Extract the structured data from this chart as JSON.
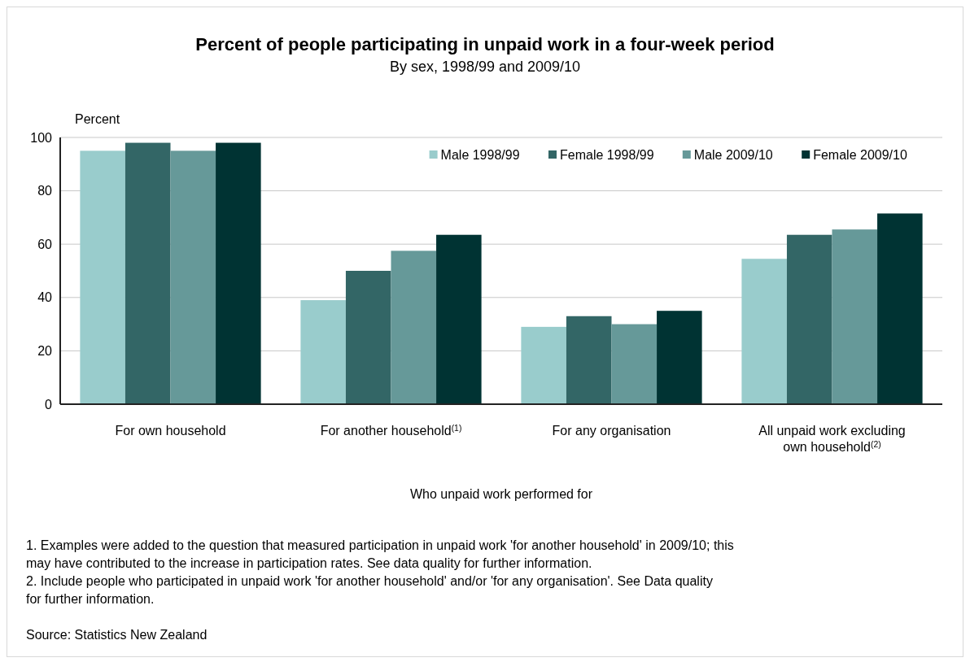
{
  "chart_data": {
    "type": "bar",
    "title": "Percent of people participating in unpaid work in a four-week period",
    "subtitle": "By sex, 1998/99 and 2009/10",
    "ylabel": "Percent",
    "xlabel": "Who unpaid work performed for",
    "categories": [
      "For own household",
      "For another household$^{(1)}$",
      "For any organisation",
      "All unpaid work excluding own household$^{(2)}$"
    ],
    "series": [
      {
        "name": "Male 1998/99",
        "color": "#99cccc",
        "values": [
          95,
          39,
          29,
          54.5
        ]
      },
      {
        "name": "Female 1998/99",
        "color": "#336666",
        "values": [
          98,
          50,
          33,
          63.5
        ]
      },
      {
        "name": "Male 2009/10",
        "color": "#669999",
        "values": [
          95,
          57.5,
          30,
          65.5
        ]
      },
      {
        "name": "Female 2009/10",
        "color": "#003333",
        "values": [
          98,
          63.5,
          35,
          71.5
        ]
      }
    ],
    "ylim": [
      0,
      100
    ],
    "yticks": [
      0,
      20,
      40,
      60,
      80,
      100
    ],
    "grid": "y",
    "legend": "top right",
    "annotations": [
      "1. Examples were added to the question that measured participation in unpaid work 'for another household' in 2009/10; this may have contributed to the increase in participation rates.  See data quality for further information.",
      "2. Include people who participated in unpaid work 'for another household' and/or 'for any organisation'. See Data quality for further information.",
      "Source: Statistics New Zealand"
    ]
  }
}
